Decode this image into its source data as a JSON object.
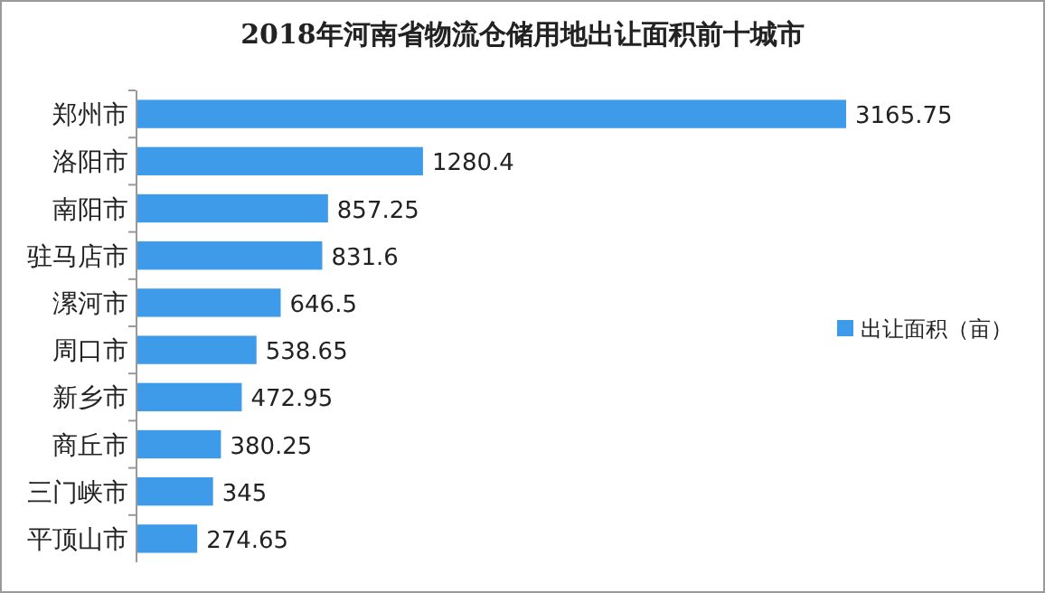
{
  "chart_data": {
    "type": "bar",
    "orientation": "horizontal",
    "title": "2018年河南省物流仓储用地出让面积前十城市",
    "categories": [
      "郑州市",
      "洛阳市",
      "南阳市",
      "驻马店市",
      "漯河市",
      "周口市",
      "新乡市",
      "商丘市",
      "三门峡市",
      "平顶山市"
    ],
    "series": [
      {
        "name": "出让面积（亩）",
        "color": "#3d9be9",
        "values": [
          3165.75,
          1280.4,
          857.25,
          831.6,
          646.5,
          538.65,
          472.95,
          380.25,
          345,
          274.65
        ]
      }
    ],
    "data_labels": true,
    "legend": "right"
  }
}
